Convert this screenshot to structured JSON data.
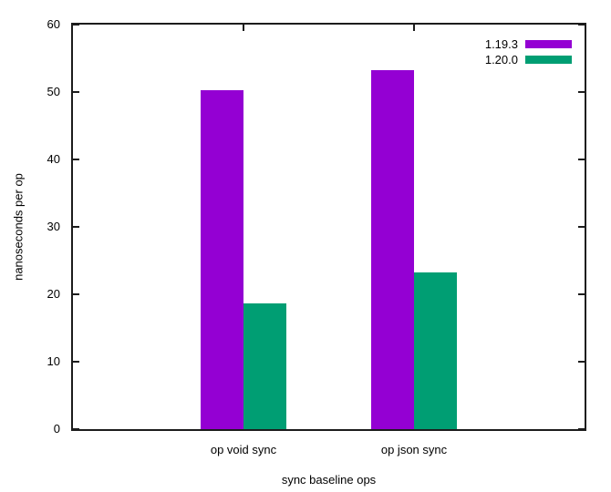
{
  "chart_data": {
    "type": "bar",
    "title": "",
    "xlabel": "sync baseline ops",
    "ylabel": "nanoseconds per op",
    "categories": [
      "op void sync",
      "op json sync"
    ],
    "series": [
      {
        "name": "1.19.3",
        "color": "#9400d3",
        "values": [
          50.3,
          53.2
        ]
      },
      {
        "name": "1.20.0",
        "color": "#009e73",
        "values": [
          18.7,
          23.3
        ]
      }
    ],
    "ylim": [
      0,
      60
    ],
    "yticks": [
      0,
      10,
      20,
      30,
      40,
      50,
      60
    ],
    "grid": false,
    "legend_position": "top-right",
    "background": "#ffffff"
  }
}
